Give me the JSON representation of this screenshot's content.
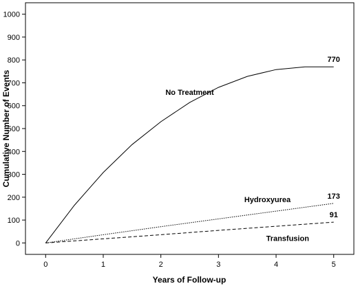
{
  "chart_data": {
    "type": "line",
    "title": "",
    "xlabel": "Years of Follow-up",
    "ylabel": "Cumulative Number of Events",
    "xlim": [
      -0.35,
      5.35
    ],
    "ylim": [
      -50,
      1050
    ],
    "xticks": [
      0,
      1,
      2,
      3,
      4,
      5
    ],
    "yticks": [
      0,
      100,
      200,
      300,
      400,
      500,
      600,
      700,
      800,
      900,
      1000
    ],
    "grid": false,
    "legend": "none",
    "series": [
      {
        "name": "No Treatment",
        "style": "solid",
        "end_label": "770",
        "x": [
          0,
          0.5,
          1,
          1.5,
          2,
          2.5,
          3,
          3.5,
          4,
          4.5,
          5
        ],
        "y": [
          0,
          165,
          308,
          430,
          530,
          614,
          680,
          728,
          758,
          770,
          770
        ]
      },
      {
        "name": "Hydroxyurea",
        "style": "dotted",
        "end_label": "173",
        "x": [
          0,
          1,
          2,
          3,
          4,
          5
        ],
        "y": [
          0,
          36,
          71,
          105,
          139,
          173
        ]
      },
      {
        "name": "Transfusion",
        "style": "dashed",
        "end_label": "91",
        "x": [
          0,
          1,
          2,
          3,
          4,
          5
        ],
        "y": [
          0,
          18,
          36,
          55,
          73,
          91
        ]
      }
    ]
  }
}
